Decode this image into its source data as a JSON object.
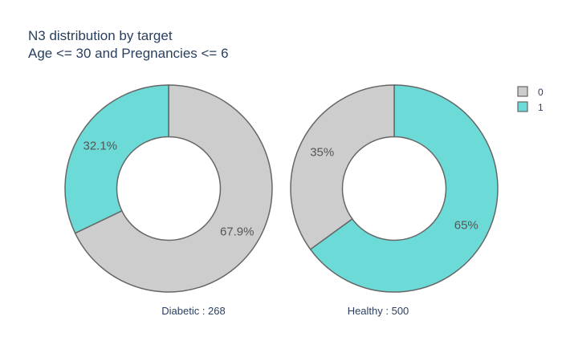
{
  "chart_data": {
    "type": "pie",
    "hole": 0.5,
    "title": "N3 distribution by target",
    "subtitle": "Age <= 30 and Pregnancies <= 6",
    "legend": {
      "placement": "top-right",
      "entries": [
        {
          "label": "0",
          "color": "#cdcdcd"
        },
        {
          "label": "1",
          "color": "#6cdad6"
        }
      ]
    },
    "colors": {
      "0": "#cdcdcd",
      "1": "#6cdad6",
      "outline": "#666666"
    },
    "pies": [
      {
        "caption": "Diabetic : 268",
        "slices": [
          {
            "category": "0",
            "percent": 67.9,
            "label": "67.9%"
          },
          {
            "category": "1",
            "percent": 32.1,
            "label": "32.1%"
          }
        ]
      },
      {
        "caption": "Healthy : 500",
        "slices": [
          {
            "category": "0",
            "percent": 35,
            "label": "35%"
          },
          {
            "category": "1",
            "percent": 65,
            "label": "65%"
          }
        ]
      }
    ]
  }
}
